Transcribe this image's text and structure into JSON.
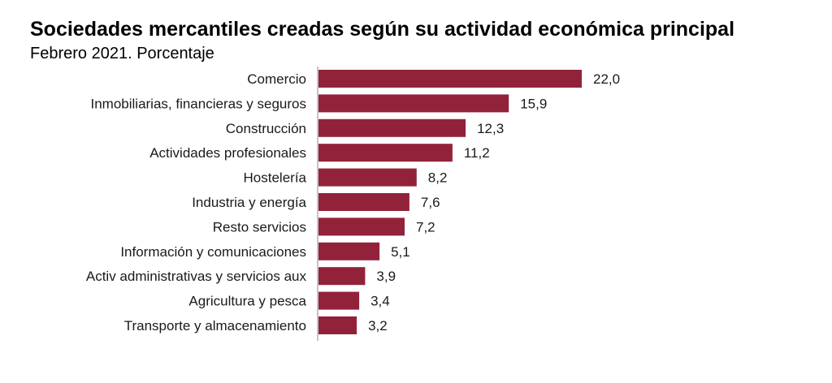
{
  "title": "Sociedades mercantiles creadas según su actividad económica principal",
  "subtitle": "Febrero 2021. Porcentaje",
  "chart_data": {
    "type": "bar",
    "orientation": "horizontal",
    "title": "Sociedades mercantiles creadas según su actividad económica principal",
    "subtitle": "Febrero 2021. Porcentaje",
    "categories": [
      "Comercio",
      "Inmobiliarias, financieras y seguros",
      "Construcción",
      "Actividades profesionales",
      "Hostelería",
      "Industria y energía",
      "Resto servicios",
      "Información y comunicaciones",
      "Activ administrativas y servicios aux",
      "Agricultura y pesca",
      "Transporte y almacenamiento"
    ],
    "values": [
      22.0,
      15.9,
      12.3,
      11.2,
      8.2,
      7.6,
      7.2,
      5.1,
      3.9,
      3.4,
      3.2
    ],
    "value_labels": [
      "22,0",
      "15,9",
      "12,3",
      "11,2",
      "8,2",
      "7,6",
      "7,2",
      "5,1",
      "3,9",
      "3,4",
      "3,2"
    ],
    "xlim": [
      0,
      22.0
    ],
    "grid": false,
    "legend": "none",
    "bar_color": "#92223a"
  }
}
